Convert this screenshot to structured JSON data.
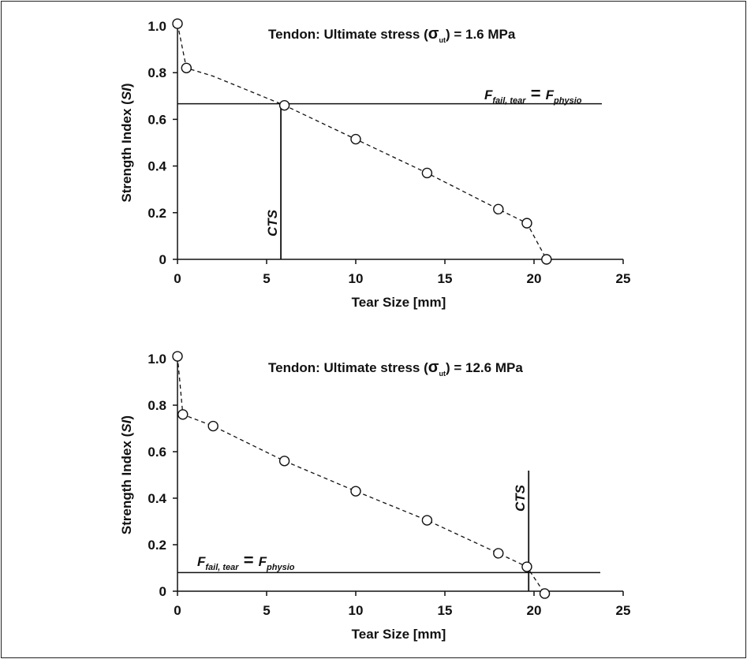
{
  "chart_data": [
    {
      "type": "line",
      "title_prefix": "Tendon: Ultimate stress (",
      "title_sigma": "σ",
      "title_sub": "ut",
      "title_suffix": ") = 1.6 MPa",
      "xlabel": "Tear Size [mm]",
      "ylabel_prefix": "Strength Index (",
      "ylabel_italic": "SI",
      "ylabel_suffix": ")",
      "xlim": [
        0,
        25
      ],
      "ylim": [
        0,
        1.0
      ],
      "xticks": [
        "0",
        "5",
        "10",
        "15",
        "20",
        "25"
      ],
      "yticks": [
        "0",
        "0.2",
        "0.4",
        "0.6",
        "0.8",
        "1.0"
      ],
      "grid": false,
      "line_style": "dashed",
      "series": [
        {
          "x": [
            0,
            0.5,
            2,
            6,
            10,
            14,
            18,
            19.6,
            20.7
          ],
          "y": [
            1.01,
            0.82,
            0.785,
            0.66,
            0.515,
            0.37,
            0.215,
            0.155,
            0
          ],
          "markers": [
            true,
            true,
            false,
            true,
            true,
            true,
            true,
            true,
            true
          ]
        }
      ],
      "threshold": {
        "y": 0.667,
        "label_F": "F",
        "label_sub_left": "fail, tear",
        "label_eq": "=",
        "label_F2": "F",
        "label_sub_right": "physio"
      },
      "cts": {
        "x": 5.8,
        "label": "CTS"
      }
    },
    {
      "type": "line",
      "title_prefix": "Tendon: Ultimate stress (",
      "title_sigma": "σ",
      "title_sub": "ut",
      "title_suffix": ") = 12.6 MPa",
      "xlabel": "Tear Size [mm]",
      "ylabel_prefix": "Strength Index (",
      "ylabel_italic": "SI",
      "ylabel_suffix": ")",
      "xlim": [
        0,
        25
      ],
      "ylim": [
        0,
        1.0
      ],
      "xticks": [
        "0",
        "5",
        "10",
        "15",
        "20",
        "25"
      ],
      "yticks": [
        "0",
        "0.2",
        "0.4",
        "0.6",
        "0.8",
        "1.0"
      ],
      "grid": false,
      "line_style": "dashed",
      "series": [
        {
          "x": [
            0,
            0.3,
            2,
            6,
            10,
            14,
            18,
            19.6,
            20.6
          ],
          "y": [
            1.01,
            0.76,
            0.71,
            0.56,
            0.43,
            0.305,
            0.163,
            0.105,
            -0.01
          ],
          "markers": [
            true,
            true,
            true,
            true,
            true,
            true,
            true,
            true,
            true
          ]
        }
      ],
      "threshold": {
        "y": 0.08,
        "label_F": "F",
        "label_sub_left": "fail, tear",
        "label_eq": "=",
        "label_F2": "F",
        "label_sub_right": "physio"
      },
      "cts": {
        "x": 19.7,
        "label": "CTS"
      }
    }
  ]
}
